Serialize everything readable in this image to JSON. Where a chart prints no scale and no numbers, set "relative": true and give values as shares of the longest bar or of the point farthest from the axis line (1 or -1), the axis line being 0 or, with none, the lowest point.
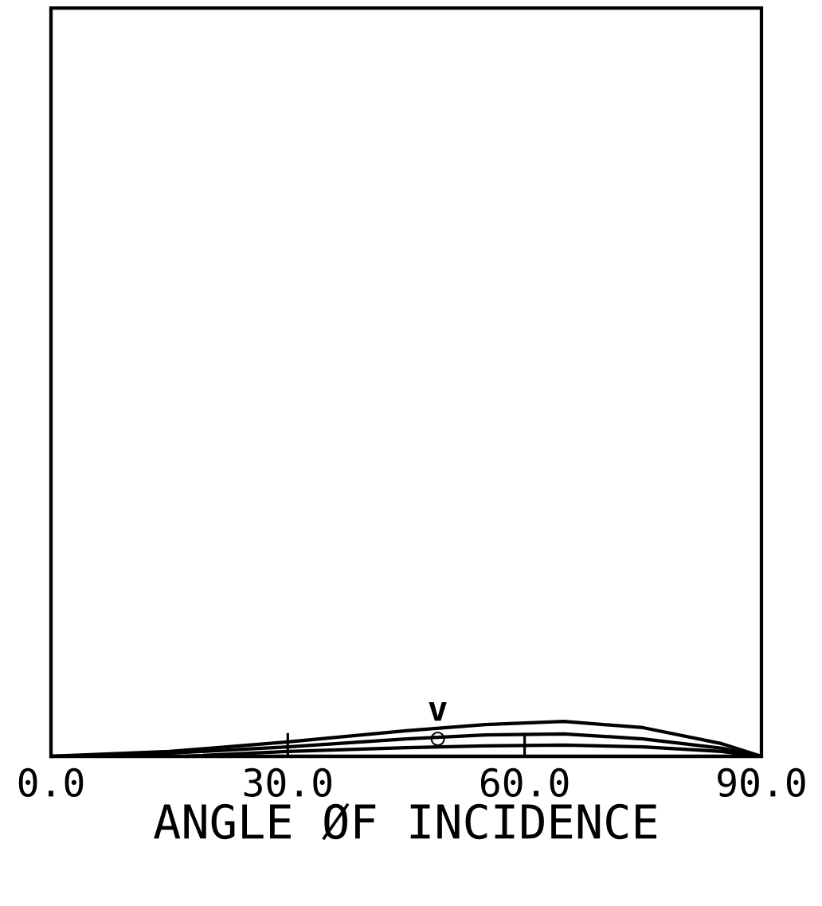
{
  "chart_data": {
    "type": "line",
    "relative": true,
    "xlabel": "ANGLE ØF INCIDENCE",
    "xlim": [
      0,
      90
    ],
    "xticks": [
      {
        "value": 0,
        "label": "0.0"
      },
      {
        "value": 30,
        "label": "30.0"
      },
      {
        "value": 60,
        "label": "60.0"
      },
      {
        "value": 90,
        "label": "90.0"
      }
    ],
    "series": [
      {
        "color": "#000000",
        "x": [
          0,
          15,
          30,
          45,
          55,
          65,
          75,
          85,
          90
        ],
        "values": [
          0,
          0.14,
          0.41,
          0.73,
          0.91,
          1,
          0.82,
          0.36,
          0
        ]
      },
      {
        "color": "#000000",
        "x": [
          4,
          15,
          30,
          45,
          55,
          65,
          75,
          85,
          89
        ],
        "values": [
          0.02,
          0.09,
          0.27,
          0.5,
          0.61,
          0.64,
          0.5,
          0.23,
          0.03
        ]
      },
      {
        "color": "#000000",
        "x": [
          17,
          30,
          45,
          55,
          65,
          75,
          85,
          88
        ],
        "values": [
          0,
          0.14,
          0.25,
          0.3,
          0.32,
          0.27,
          0.14,
          0.05
        ]
      },
      {
        "type": "scatter",
        "marker": "circle",
        "color": "#000000",
        "x": [
          49
        ],
        "values": [
          0.5
        ]
      }
    ],
    "annotations": [
      {
        "text": "v",
        "x": 49,
        "y": 0.5
      }
    ]
  }
}
